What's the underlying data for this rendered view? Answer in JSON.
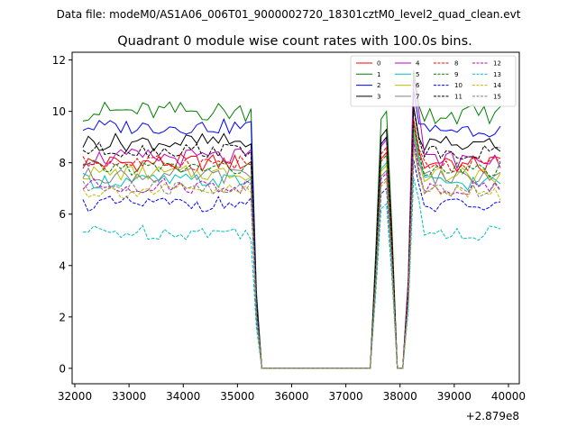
{
  "suptitle": "Data file: modeM0/AS1A06_006T01_9000002720_18301cztM0_level2_quad_clean.evt",
  "chart_data": {
    "type": "line",
    "title": "Quadrant 0 module wise count rates with 100.0s bins.",
    "xlabel": "",
    "ylabel": "",
    "x_offset_label": "+2.879e8",
    "xlim": [
      31950,
      40200
    ],
    "ylim": [
      -0.6,
      12.3
    ],
    "xticks": [
      32000,
      33000,
      34000,
      35000,
      36000,
      37000,
      38000,
      39000,
      40000
    ],
    "xtick_labels": [
      "32000",
      "33000",
      "34000",
      "35000",
      "36000",
      "37000",
      "38000",
      "39000",
      "40000"
    ],
    "yticks": [
      0,
      2,
      4,
      6,
      8,
      10,
      12
    ],
    "ytick_labels": [
      "0",
      "2",
      "4",
      "6",
      "8",
      "10",
      "12"
    ],
    "legend_position": "top-right",
    "series": [
      {
        "name": "0",
        "color": "#ff0000",
        "dash": "solid",
        "base": 8.0,
        "amp": 0.35,
        "peaks": [
          8.4,
          9.6
        ]
      },
      {
        "name": "1",
        "color": "#008000",
        "dash": "solid",
        "base": 10.0,
        "amp": 0.4,
        "peaks": [
          10.0,
          11.6
        ]
      },
      {
        "name": "2",
        "color": "#0000ff",
        "dash": "solid",
        "base": 9.4,
        "amp": 0.3,
        "peaks": [
          9.0,
          10.8
        ]
      },
      {
        "name": "3",
        "color": "#000000",
        "dash": "solid",
        "base": 8.8,
        "amp": 0.35,
        "peaks": [
          9.3,
          10.2
        ]
      },
      {
        "name": "4",
        "color": "#bf00bf",
        "dash": "solid",
        "base": 8.2,
        "amp": 0.35,
        "peaks": [
          8.9,
          11.3
        ]
      },
      {
        "name": "5",
        "color": "#00bfbf",
        "dash": "solid",
        "base": 7.3,
        "amp": 0.3,
        "peaks": [
          8.0,
          9.3
        ]
      },
      {
        "name": "6",
        "color": "#bfbf00",
        "dash": "solid",
        "base": 7.6,
        "amp": 0.3,
        "peaks": [
          7.9,
          9.1
        ]
      },
      {
        "name": "7",
        "color": "#808080",
        "dash": "solid",
        "base": 7.5,
        "amp": 0.3,
        "peaks": [
          7.7,
          9.0
        ]
      },
      {
        "name": "8",
        "color": "#ff0000",
        "dash": "dashed",
        "base": 8.0,
        "amp": 0.3,
        "peaks": [
          8.6,
          9.7
        ]
      },
      {
        "name": "9",
        "color": "#008000",
        "dash": "dashed",
        "base": 7.8,
        "amp": 0.3,
        "peaks": [
          8.3,
          9.5
        ]
      },
      {
        "name": "10",
        "color": "#0000ff",
        "dash": "dashed",
        "base": 6.4,
        "amp": 0.3,
        "peaks": [
          7.0,
          8.1
        ]
      },
      {
        "name": "11",
        "color": "#000000",
        "dash": "dashed",
        "base": 8.5,
        "amp": 0.3,
        "peaks": [
          9.0,
          10.1
        ]
      },
      {
        "name": "12",
        "color": "#bf00bf",
        "dash": "dashed",
        "base": 7.1,
        "amp": 0.3,
        "peaks": [
          7.6,
          8.8
        ]
      },
      {
        "name": "13",
        "color": "#00bfbf",
        "dash": "dashed",
        "base": 5.3,
        "amp": 0.3,
        "peaks": [
          6.4,
          7.4
        ]
      },
      {
        "name": "14",
        "color": "#bfbf00",
        "dash": "dashed",
        "base": 6.9,
        "amp": 0.3,
        "peaks": [
          7.3,
          8.5
        ]
      },
      {
        "name": "15",
        "color": "#808080",
        "dash": "dashed",
        "base": 7.0,
        "amp": 0.3,
        "peaks": [
          7.4,
          8.6
        ]
      }
    ]
  }
}
